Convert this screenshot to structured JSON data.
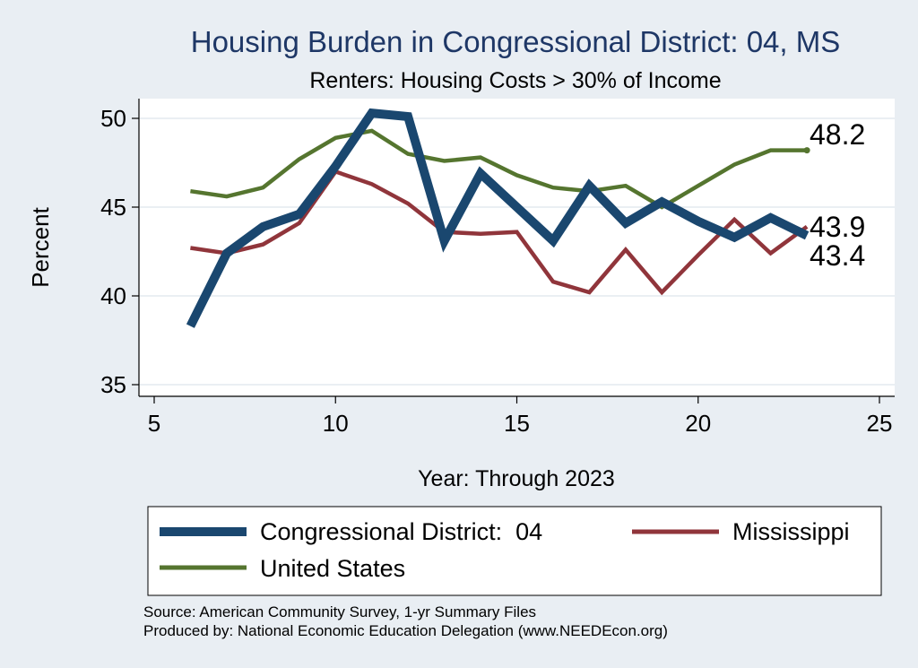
{
  "chart_data": {
    "type": "line",
    "title": "Housing Burden in Congressional District:  04, MS",
    "subtitle": "Renters: Housing Costs > 30% of Income",
    "xlabel": "Year: Through 2023",
    "ylabel": "Percent",
    "xlim": [
      5,
      25
    ],
    "ylim": [
      35,
      51
    ],
    "xticks": [
      5,
      10,
      15,
      20,
      25
    ],
    "yticks": [
      35,
      40,
      45,
      50
    ],
    "grid": true,
    "legend_position": "bottom",
    "x": [
      6,
      7,
      8,
      9,
      10,
      11,
      12,
      13,
      14,
      15,
      16,
      17,
      18,
      19,
      20,
      21,
      22,
      23
    ],
    "series": [
      {
        "name": "Congressional District:  04",
        "color": "#1a476f",
        "values": [
          38.3,
          42.4,
          43.9,
          44.6,
          47.3,
          50.3,
          50.1,
          43.1,
          46.9,
          45.0,
          43.1,
          46.2,
          44.1,
          45.3,
          44.2,
          43.3,
          44.4,
          43.4
        ],
        "end_label": "43.4"
      },
      {
        "name": "Mississippi",
        "color": "#90353b",
        "values": [
          42.7,
          42.4,
          42.9,
          44.1,
          47.0,
          46.3,
          45.2,
          43.6,
          43.5,
          43.6,
          40.8,
          40.2,
          42.6,
          40.2,
          42.3,
          44.3,
          42.4,
          43.9
        ],
        "end_label": "43.9"
      },
      {
        "name": "United States",
        "color": "#55752f",
        "values": [
          45.9,
          45.6,
          46.1,
          47.7,
          48.9,
          49.3,
          48.0,
          47.6,
          47.8,
          46.8,
          46.1,
          45.9,
          46.2,
          45.0,
          46.2,
          47.4,
          48.2,
          48.2
        ],
        "end_label": "48.2"
      }
    ],
    "source": "Source: American Community Survey, 1-yr Summary Files",
    "producer": "Produced by: National Economic Education Delegation (www.NEEDEcon.org)"
  }
}
